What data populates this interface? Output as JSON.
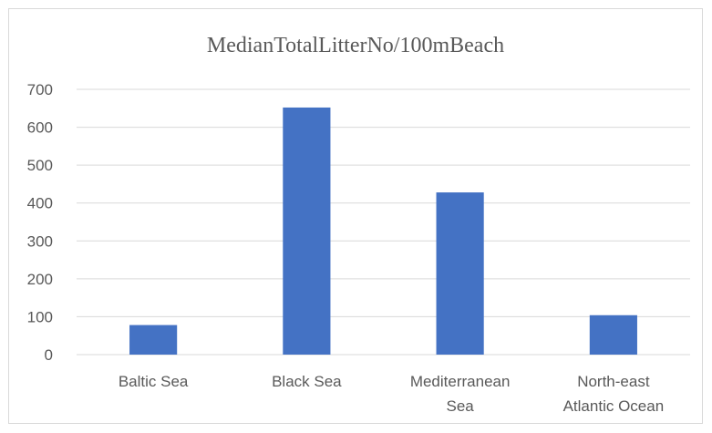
{
  "chart_data": {
    "type": "bar",
    "title": "MedianTotalLitterNo/100mBeach",
    "xlabel": "",
    "ylabel": "",
    "categories": [
      [
        "Baltic Sea"
      ],
      [
        "Black Sea"
      ],
      [
        "Mediterranean",
        "Sea"
      ],
      [
        "North-east",
        "Atlantic Ocean"
      ]
    ],
    "values": [
      78,
      652,
      428,
      104
    ],
    "ylim": [
      0,
      700
    ],
    "yticks": [
      0,
      100,
      200,
      300,
      400,
      500,
      600,
      700
    ],
    "grid": true,
    "legend": "none",
    "bar_color": "#4472c4"
  }
}
